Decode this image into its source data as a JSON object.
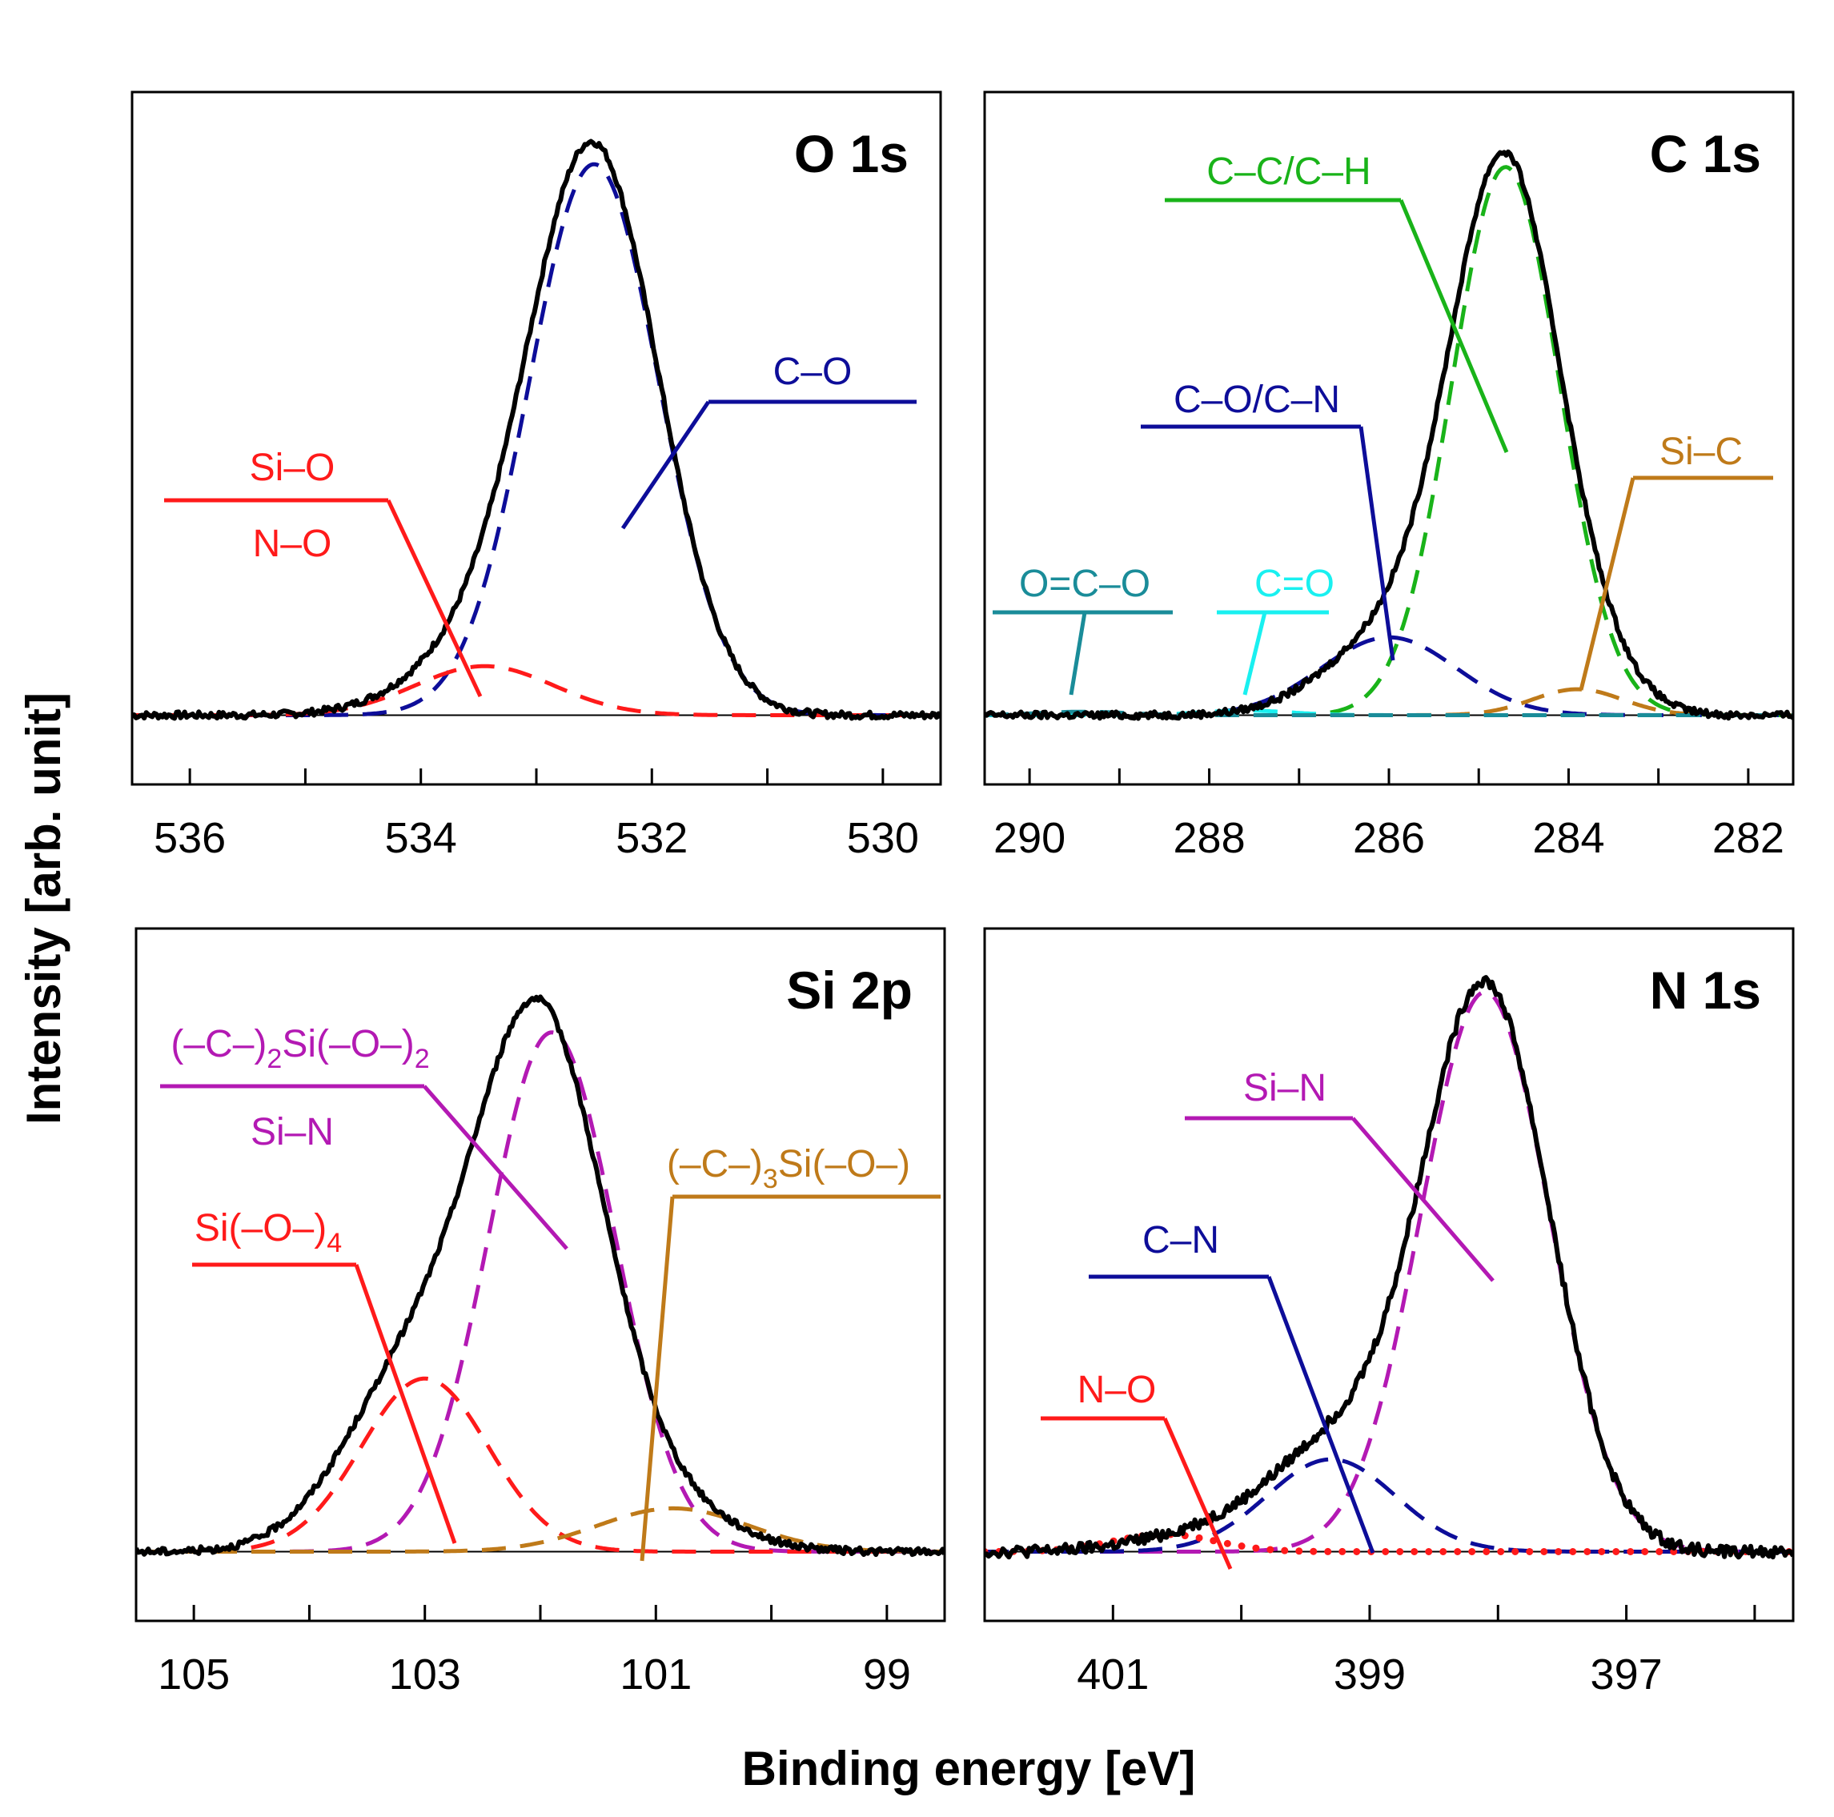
{
  "colors": {
    "measured": "#000000",
    "red": "#ff1a1a",
    "blue": "#0d0d99",
    "green": "#19b319",
    "brown": "#bf7a19",
    "magenta": "#b319b3",
    "teal": "#1a8c99",
    "cyan": "#19f0f0"
  },
  "chart_data": [
    {
      "type": "line",
      "title": "O 1s",
      "x_range": [
        536.5,
        529.5
      ],
      "x_reversed": true,
      "xticks": [
        536,
        534,
        532,
        530
      ],
      "xtick_labels": [
        "536",
        "534",
        "532",
        "530"
      ],
      "y_range": [
        -0.12,
        1.08
      ],
      "measured": {
        "name": "measured",
        "color": "measured",
        "baseline": 0.0,
        "noise": 0.006,
        "peaks": [
          {
            "c": 532.5,
            "a": 0.97,
            "w": 0.56
          },
          {
            "c": 533.5,
            "a": 0.095,
            "w": 0.6
          }
        ]
      },
      "series": [
        {
          "name": "C–O",
          "color": "blue",
          "c": 532.5,
          "a": 0.955,
          "w": 0.56,
          "style": "dashed"
        },
        {
          "name": "Si–O / N–O",
          "color": "red",
          "c": 533.45,
          "a": 0.085,
          "w": 0.6,
          "style": "dashed"
        }
      ],
      "annotations": [
        {
          "lines": [
            "Si–O",
            "N–O"
          ],
          "color": "red"
        },
        {
          "lines": [
            "C–O"
          ],
          "color": "blue"
        }
      ]
    },
    {
      "type": "line",
      "title": "C 1s",
      "x_range": [
        290.5,
        281.5
      ],
      "x_reversed": true,
      "xticks": [
        290,
        288,
        286,
        284,
        282
      ],
      "xtick_labels": [
        "290",
        "288",
        "286",
        "284",
        "282"
      ],
      "y_range": [
        -0.12,
        1.08
      ],
      "measured": {
        "name": "measured",
        "color": "measured",
        "baseline": 0.0,
        "noise": 0.006,
        "peaks": [
          {
            "c": 284.7,
            "a": 0.93,
            "w": 0.6
          },
          {
            "c": 285.9,
            "a": 0.14,
            "w": 0.75
          },
          {
            "c": 283.7,
            "a": 0.05,
            "w": 0.5
          }
        ]
      },
      "series": [
        {
          "name": "C–C/C–H",
          "color": "green",
          "c": 284.7,
          "a": 0.95,
          "w": 0.6,
          "style": "dashed"
        },
        {
          "name": "C–O/C–N",
          "color": "blue",
          "c": 286.0,
          "a": 0.135,
          "w": 0.75,
          "style": "dashed"
        },
        {
          "name": "Si–C",
          "color": "brown",
          "c": 283.9,
          "a": 0.045,
          "w": 0.5,
          "style": "dashed"
        },
        {
          "name": "C=O",
          "color": "cyan",
          "c": 287.6,
          "a": 0.008,
          "w": 0.5,
          "style": "dashed"
        },
        {
          "name": "O=C–O",
          "color": "teal",
          "c": 289.4,
          "a": 0.006,
          "w": 0.5,
          "style": "dashed"
        }
      ],
      "annotations": [
        {
          "lines": [
            "C–C/C–H"
          ],
          "color": "green"
        },
        {
          "lines": [
            "C–O/C–N"
          ],
          "color": "blue"
        },
        {
          "lines": [
            "Si–C"
          ],
          "color": "brown"
        },
        {
          "lines": [
            "O=C–O"
          ],
          "color": "teal"
        },
        {
          "lines": [
            "C=O"
          ],
          "color": "cyan"
        }
      ]
    },
    {
      "type": "line",
      "title": "Si 2p",
      "x_range": [
        105.5,
        98.5
      ],
      "x_reversed": true,
      "xticks": [
        105,
        103,
        101,
        99
      ],
      "xtick_labels": [
        "105",
        "103",
        "101",
        "99"
      ],
      "y_range": [
        -0.12,
        1.08
      ],
      "measured": {
        "name": "measured",
        "color": "measured",
        "baseline": 0.0,
        "noise": 0.006,
        "peaks": [
          {
            "c": 102.0,
            "a": 0.88,
            "w": 0.55
          },
          {
            "c": 103.1,
            "a": 0.3,
            "w": 0.6
          },
          {
            "c": 101.0,
            "a": 0.08,
            "w": 0.6
          }
        ]
      },
      "series": [
        {
          "name": "(–C–)2Si(–O–)2 / Si–N",
          "color": "magenta",
          "c": 101.9,
          "a": 0.9,
          "w": 0.55,
          "style": "dashed"
        },
        {
          "name": "Si(–O–)4",
          "color": "red",
          "c": 103.0,
          "a": 0.3,
          "w": 0.55,
          "style": "dashed"
        },
        {
          "name": "(–C–)3Si(–O–)",
          "color": "brown",
          "c": 100.85,
          "a": 0.075,
          "w": 0.65,
          "style": "dashed"
        }
      ],
      "annotations": [
        {
          "lines": [
            "(–C–)",
            "2",
            "Si(–O–)",
            "2"
          ],
          "color": "magenta",
          "rich": true
        },
        {
          "lines": [
            "Si–N"
          ],
          "color": "magenta"
        },
        {
          "lines": [
            "Si(–O–)",
            "4"
          ],
          "color": "red",
          "rich": true
        },
        {
          "lines": [
            "(–C–)",
            "3",
            "Si(–O–)"
          ],
          "color": "brown",
          "rich": true
        }
      ]
    },
    {
      "type": "line",
      "title": "N 1s",
      "x_range": [
        402.0,
        395.7
      ],
      "x_reversed": true,
      "xticks": [
        401,
        399,
        397
      ],
      "xtick_labels": [
        "401",
        "399",
        "397"
      ],
      "y_range": [
        -0.12,
        1.08
      ],
      "measured": {
        "name": "measured",
        "color": "measured",
        "baseline": 0.0,
        "noise": 0.01,
        "peaks": [
          {
            "c": 398.1,
            "a": 0.98,
            "w": 0.5
          },
          {
            "c": 399.3,
            "a": 0.17,
            "w": 0.5
          },
          {
            "c": 400.3,
            "a": 0.03,
            "w": 0.5
          }
        ]
      },
      "series": [
        {
          "name": "Si–N",
          "color": "magenta",
          "c": 398.1,
          "a": 0.97,
          "w": 0.5,
          "style": "dashed"
        },
        {
          "name": "C–N",
          "color": "blue",
          "c": 399.3,
          "a": 0.16,
          "w": 0.5,
          "style": "dashed"
        },
        {
          "name": "N–O",
          "color": "red",
          "c": 400.6,
          "a": 0.03,
          "w": 0.4,
          "style": "dotted"
        }
      ],
      "annotations": [
        {
          "lines": [
            "Si–N"
          ],
          "color": "magenta"
        },
        {
          "lines": [
            "C–N"
          ],
          "color": "blue"
        },
        {
          "lines": [
            "N–O"
          ],
          "color": "red"
        }
      ]
    }
  ],
  "axis_titles": {
    "x": "Binding energy [eV]",
    "y": "Intensity [arb. unit]"
  }
}
